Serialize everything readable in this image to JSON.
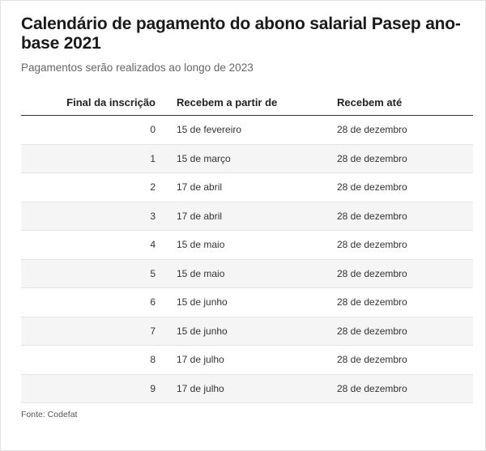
{
  "title": "Calendário de pagamento do abono salarial Pasep ano-base 2021",
  "subtitle": "Pagamentos serão realizados ao longo de 2023",
  "table": {
    "headers": [
      "Final da inscrição",
      "Recebem a partir de",
      "Recebem até"
    ],
    "rows": [
      {
        "final": "0",
        "start": "15 de fevereiro",
        "end": "28 de dezembro"
      },
      {
        "final": "1",
        "start": "15 de março",
        "end": "28 de dezembro"
      },
      {
        "final": "2",
        "start": "17 de abril",
        "end": "28 de dezembro"
      },
      {
        "final": "3",
        "start": "17 de abril",
        "end": "28 de dezembro"
      },
      {
        "final": "4",
        "start": "15 de maio",
        "end": "28 de dezembro"
      },
      {
        "final": "5",
        "start": "15 de maio",
        "end": "28 de dezembro"
      },
      {
        "final": "6",
        "start": "15 de junho",
        "end": "28 de dezembro"
      },
      {
        "final": "7",
        "start": "15 de junho",
        "end": "28 de dezembro"
      },
      {
        "final": "8",
        "start": "17 de julho",
        "end": "28 de dezembro"
      },
      {
        "final": "9",
        "start": "17 de julho",
        "end": "28 de dezembro"
      }
    ]
  },
  "source": "Fonte: Codefat"
}
